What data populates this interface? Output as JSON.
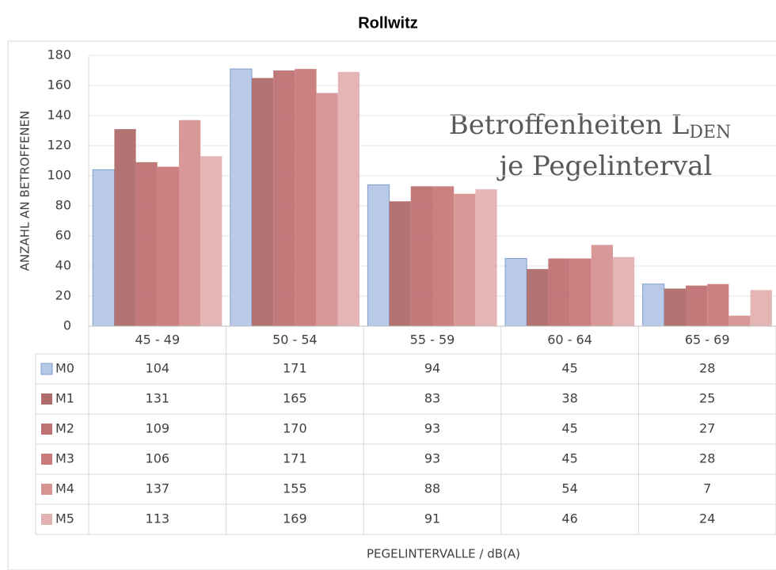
{
  "chart_data": {
    "type": "bar",
    "title": "Rollwitz",
    "annotation": {
      "line1": "Betroffenheiten L",
      "subscript": "DEN",
      "line2": "je Pegelinterval"
    },
    "y_label": "ANZAHL AN BETROFFENEN",
    "x_label": "PEGELINTERVALLE / dB(A)",
    "categories": [
      "45 - 49",
      "50 - 54",
      "55 - 59",
      "60 - 64",
      "65 - 69"
    ],
    "series": [
      {
        "name": "M0",
        "color": "#b4c7e7",
        "values": [
          104,
          171,
          94,
          45,
          28
        ]
      },
      {
        "name": "M1",
        "color": "#b06c6c",
        "values": [
          131,
          165,
          83,
          38,
          25
        ]
      },
      {
        "name": "M2",
        "color": "#bf7273",
        "values": [
          109,
          170,
          93,
          45,
          27
        ]
      },
      {
        "name": "M3",
        "color": "#c97a7a",
        "values": [
          106,
          171,
          93,
          45,
          28
        ]
      },
      {
        "name": "M4",
        "color": "#d79292",
        "values": [
          137,
          155,
          88,
          54,
          7
        ]
      },
      {
        "name": "M5",
        "color": "#e3b1b1",
        "values": [
          113,
          169,
          91,
          46,
          24
        ]
      }
    ],
    "ylim": [
      0,
      180
    ],
    "yticks": [
      0,
      20,
      40,
      60,
      80,
      100,
      120,
      140,
      160,
      180
    ],
    "grid": true
  }
}
